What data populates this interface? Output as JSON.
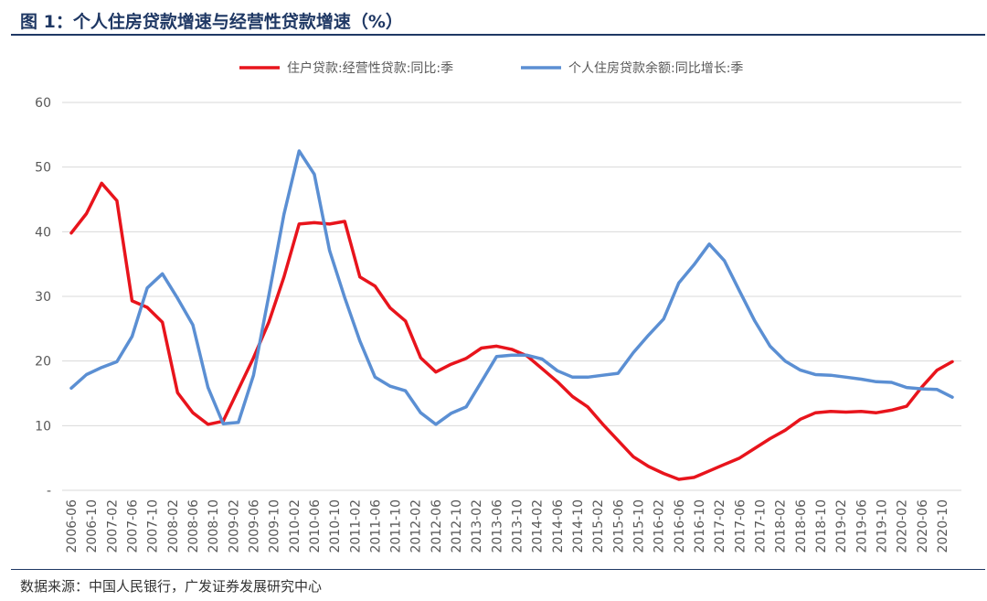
{
  "title": "图 1：个人住房贷款增速与经营性贷款增速（%）",
  "source": "数据来源：中国人民银行，广发证券发展研究中心",
  "colors": {
    "series_red": "#e8141c",
    "series_blue": "#5b8fd3",
    "accent": "#1f3864"
  },
  "chart_data": {
    "type": "line",
    "title": "",
    "xlabel": "",
    "ylabel": "",
    "ylim": [
      0,
      60
    ],
    "yticks": [
      "-",
      "10",
      "20",
      "30",
      "40",
      "50",
      "60"
    ],
    "grid": true,
    "legend_position": "top",
    "x": [
      "2006-06",
      "2006-08",
      "2006-10",
      "2006-12",
      "2007-02",
      "2007-04",
      "2007-06",
      "2007-08",
      "2007-10",
      "2007-12",
      "2008-02",
      "2008-04",
      "2008-06",
      "2008-08",
      "2008-10",
      "2008-12",
      "2009-02",
      "2009-04",
      "2009-06",
      "2009-08",
      "2009-10",
      "2009-12",
      "2010-02",
      "2010-04",
      "2010-06",
      "2010-08",
      "2010-10",
      "2010-12",
      "2011-02",
      "2011-04",
      "2011-06",
      "2011-08",
      "2011-10",
      "2011-12",
      "2012-02",
      "2012-04",
      "2012-06",
      "2012-08",
      "2012-10",
      "2012-12",
      "2013-02",
      "2013-04",
      "2013-06",
      "2013-08",
      "2013-10",
      "2013-12",
      "2014-02",
      "2014-04",
      "2014-06",
      "2014-08",
      "2014-10",
      "2014-12",
      "2015-02",
      "2015-04",
      "2015-06",
      "2015-08",
      "2015-10",
      "2015-12",
      "2016-02",
      "2016-04",
      "2016-06",
      "2016-08",
      "2016-10",
      "2016-12",
      "2017-02",
      "2017-04",
      "2017-06",
      "2017-08",
      "2017-10",
      "2017-12",
      "2018-02",
      "2018-04",
      "2018-06",
      "2018-08",
      "2018-10",
      "2018-12",
      "2019-02",
      "2019-04",
      "2019-06",
      "2019-08",
      "2019-10",
      "2019-12",
      "2020-02",
      "2020-04",
      "2020-06",
      "2020-08",
      "2020-10",
      "2020-12"
    ],
    "x_tick_labels": [
      "2006-06",
      "2006-10",
      "2007-02",
      "2007-06",
      "2007-10",
      "2008-02",
      "2008-06",
      "2008-10",
      "2009-02",
      "2009-06",
      "2009-10",
      "2010-02",
      "2010-06",
      "2010-10",
      "2011-02",
      "2011-06",
      "2011-10",
      "2012-02",
      "2012-06",
      "2012-10",
      "2013-02",
      "2013-06",
      "2013-10",
      "2014-02",
      "2014-06",
      "2014-10",
      "2015-02",
      "2015-06",
      "2015-10",
      "2016-02",
      "2016-06",
      "2016-10",
      "2017-02",
      "2017-06",
      "2017-10",
      "2018-02",
      "2018-06",
      "2018-10",
      "2019-02",
      "2019-06",
      "2019-10",
      "2020-02",
      "2020-06",
      "2020-10"
    ],
    "series": [
      {
        "name": "住户贷款:经营性贷款:同比:季",
        "color": "#e8141c",
        "x": [
          "2006-06",
          "2006-09",
          "2006-12",
          "2007-03",
          "2007-06",
          "2007-09",
          "2007-12",
          "2008-03",
          "2008-06",
          "2008-09",
          "2008-12",
          "2009-03",
          "2009-06",
          "2009-09",
          "2009-12",
          "2010-03",
          "2010-06",
          "2010-09",
          "2010-12",
          "2011-03",
          "2011-06",
          "2011-09",
          "2011-12",
          "2012-03",
          "2012-06",
          "2012-09",
          "2012-12",
          "2013-03",
          "2013-06",
          "2013-09",
          "2013-12",
          "2014-03",
          "2014-06",
          "2014-09",
          "2014-12",
          "2015-03",
          "2015-06",
          "2015-09",
          "2015-12",
          "2016-03",
          "2016-06",
          "2016-09",
          "2016-12",
          "2017-03",
          "2017-06",
          "2017-09",
          "2017-12",
          "2018-03",
          "2018-06",
          "2018-09",
          "2018-12",
          "2019-03",
          "2019-06",
          "2019-09",
          "2019-12",
          "2020-03",
          "2020-06",
          "2020-09",
          "2020-12"
        ],
        "values": [
          39.8,
          42.8,
          47.5,
          44.8,
          29.3,
          28.3,
          26.0,
          15.1,
          12.0,
          10.2,
          10.7,
          15.6,
          20.5,
          26.0,
          33.0,
          41.2,
          41.4,
          41.2,
          41.6,
          33.0,
          31.6,
          28.2,
          26.2,
          20.5,
          18.3,
          19.5,
          20.4,
          22.0,
          22.3,
          21.8,
          20.8,
          18.8,
          16.8,
          14.5,
          12.9,
          10.2,
          7.7,
          5.2,
          3.7,
          2.6,
          1.7,
          2.0,
          3.0,
          4.0,
          5.0,
          6.5,
          8.0,
          9.3,
          11.0,
          12.0,
          12.2,
          12.1,
          12.2,
          12.0,
          12.4,
          13.0,
          16.0,
          18.6,
          19.9
        ]
      },
      {
        "name": "个人住房贷款余额:同比增长:季",
        "color": "#5b8fd3",
        "x": [
          "2006-06",
          "2006-09",
          "2006-12",
          "2007-03",
          "2007-06",
          "2007-09",
          "2007-12",
          "2008-03",
          "2008-06",
          "2008-09",
          "2008-12",
          "2009-03",
          "2009-06",
          "2009-09",
          "2009-12",
          "2010-03",
          "2010-06",
          "2010-09",
          "2010-12",
          "2011-03",
          "2011-06",
          "2011-09",
          "2011-12",
          "2012-03",
          "2012-06",
          "2012-09",
          "2012-12",
          "2013-03",
          "2013-06",
          "2013-09",
          "2013-12",
          "2014-03",
          "2014-06",
          "2014-09",
          "2014-12",
          "2015-03",
          "2015-06",
          "2015-09",
          "2015-12",
          "2016-03",
          "2016-06",
          "2016-09",
          "2016-12",
          "2017-03",
          "2017-06",
          "2017-09",
          "2017-12",
          "2018-03",
          "2018-06",
          "2018-09",
          "2018-12",
          "2019-03",
          "2019-06",
          "2019-09",
          "2019-12",
          "2020-03",
          "2020-06",
          "2020-09",
          "2020-12"
        ],
        "values": [
          15.8,
          17.9,
          19.0,
          19.9,
          23.8,
          31.3,
          33.5,
          29.7,
          25.6,
          15.9,
          10.3,
          10.5,
          17.8,
          30.1,
          42.7,
          52.5,
          48.9,
          37.1,
          29.8,
          23.1,
          17.5,
          16.1,
          15.4,
          12.0,
          10.2,
          11.9,
          12.9,
          16.8,
          20.7,
          20.9,
          20.9,
          20.3,
          18.5,
          17.5,
          17.5,
          17.8,
          18.1,
          21.3,
          24.0,
          26.5,
          32.1,
          34.9,
          38.1,
          35.5,
          30.8,
          26.2,
          22.3,
          20.0,
          18.6,
          17.9,
          17.8,
          17.5,
          17.2,
          16.8,
          16.7,
          15.9,
          15.7,
          15.6,
          14.4
        ]
      }
    ]
  }
}
